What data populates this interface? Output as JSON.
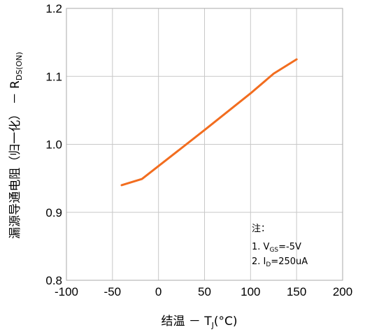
{
  "chart_data": {
    "type": "line",
    "xlabel": {
      "prefix": "结温 － T",
      "sub": "J",
      "suffix": "(°C)"
    },
    "ylabel": {
      "prefix": "漏源导通电阻（归一化）  － R",
      "sub": "DS(ON)"
    },
    "xlim": [
      -100,
      200
    ],
    "ylim": [
      0.8,
      1.2
    ],
    "x_ticks": [
      "-100",
      "-50",
      "0",
      "50",
      "100",
      "150",
      "200"
    ],
    "y_ticks": [
      "0.8",
      "0.9",
      "1.0",
      "1.1",
      "1.2"
    ],
    "grid": true,
    "series": [
      {
        "color": "#f26d1f",
        "x": [
          -40,
          -18,
          0,
          50,
          100,
          125,
          150
        ],
        "y": [
          0.94,
          0.949,
          0.968,
          1.021,
          1.075,
          1.104,
          1.125
        ]
      }
    ],
    "annotation": {
      "title": "注：",
      "line1": {
        "prefix": "1. V",
        "sub": "GS",
        "suffix": "=-5V"
      },
      "line2": {
        "prefix": "2. I",
        "sub": "D",
        "suffix": "=250uA"
      }
    }
  }
}
